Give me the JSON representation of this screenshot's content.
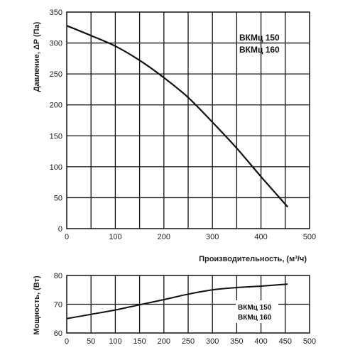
{
  "chart_data": [
    {
      "type": "line",
      "xlabel": "Производительность, (м³/ч)",
      "ylabel": "Давление, ΔP (Па)",
      "xlim": [
        0,
        500
      ],
      "ylim": [
        0,
        350
      ],
      "x_ticks": [
        "0",
        "100",
        "200",
        "300",
        "400",
        "500"
      ],
      "y_ticks": [
        "0",
        "50",
        "100",
        "150",
        "200",
        "250",
        "300",
        "350"
      ],
      "grid": true,
      "legend": [
        "ВКМц 150",
        "ВКМц 160"
      ],
      "legend_position": "top-right",
      "series": [
        {
          "x": [
            0,
            50,
            100,
            150,
            200,
            250,
            300,
            350,
            400,
            455
          ],
          "values": [
            328,
            312,
            295,
            272,
            244,
            212,
            172,
            130,
            84,
            35
          ]
        }
      ]
    },
    {
      "type": "line",
      "xlabel": "",
      "ylabel": "Мощность, (Вт)",
      "xlim": [
        0,
        500
      ],
      "ylim": [
        60,
        80
      ],
      "x_ticks": [
        "0",
        "50",
        "100",
        "150",
        "200",
        "250",
        "300",
        "350",
        "400",
        "450",
        "500"
      ],
      "y_ticks": [
        "60",
        "70",
        "80"
      ],
      "grid": true,
      "legend": [
        "ВКМц 150",
        "ВКМц 160"
      ],
      "legend_position": "bottom-right",
      "series": [
        {
          "x": [
            0,
            50,
            100,
            150,
            200,
            250,
            300,
            350,
            400,
            455
          ],
          "values": [
            65,
            66.5,
            68,
            69.8,
            71.6,
            73.5,
            75,
            75.8,
            76.3,
            77
          ]
        }
      ]
    }
  ]
}
